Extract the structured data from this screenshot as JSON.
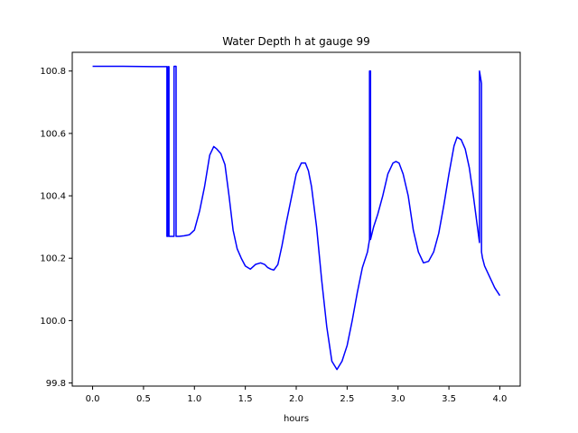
{
  "chart_data": {
    "type": "line",
    "title": "Water Depth h at gauge 99",
    "xlabel": "hours",
    "ylabel": "",
    "xlim": [
      -0.2,
      4.2
    ],
    "ylim": [
      99.79,
      100.86
    ],
    "xticks": [
      0.0,
      0.5,
      1.0,
      1.5,
      2.0,
      2.5,
      3.0,
      3.5,
      4.0
    ],
    "xtick_labels": [
      "0.0",
      "0.5",
      "1.0",
      "1.5",
      "2.0",
      "2.5",
      "3.0",
      "3.5",
      "4.0"
    ],
    "yticks": [
      99.8,
      100.0,
      100.2,
      100.4,
      100.6,
      100.8
    ],
    "ytick_labels": [
      "99.8",
      "100.0",
      "100.2",
      "100.4",
      "100.6",
      "100.8"
    ],
    "grid": false,
    "series": [
      {
        "color": "#0000ff",
        "x": [
          0.0,
          0.3,
          0.6,
          0.73,
          0.73,
          0.74,
          0.74,
          0.75,
          0.75,
          0.76,
          0.76,
          0.8,
          0.8,
          0.82,
          0.82,
          0.83,
          0.85,
          0.9,
          0.95,
          1.0,
          1.05,
          1.1,
          1.15,
          1.19,
          1.22,
          1.26,
          1.3,
          1.34,
          1.38,
          1.42,
          1.46,
          1.5,
          1.55,
          1.6,
          1.65,
          1.69,
          1.72,
          1.75,
          1.78,
          1.82,
          1.86,
          1.9,
          1.95,
          2.0,
          2.05,
          2.09,
          2.12,
          2.15,
          2.2,
          2.25,
          2.3,
          2.35,
          2.4,
          2.45,
          2.5,
          2.55,
          2.6,
          2.65,
          2.7,
          2.72,
          2.72,
          2.73,
          2.73,
          2.76,
          2.8,
          2.85,
          2.9,
          2.95,
          2.98,
          3.01,
          3.05,
          3.1,
          3.15,
          3.2,
          3.25,
          3.3,
          3.35,
          3.4,
          3.45,
          3.5,
          3.55,
          3.58,
          3.62,
          3.66,
          3.7,
          3.74,
          3.78,
          3.8,
          3.8,
          3.82,
          3.82,
          3.83,
          3.85,
          3.9,
          3.95,
          4.0
        ],
        "y": [
          100.815,
          100.815,
          100.814,
          100.814,
          100.27,
          100.27,
          100.814,
          100.814,
          100.27,
          100.27,
          100.27,
          100.27,
          100.815,
          100.815,
          100.27,
          100.27,
          100.27,
          100.272,
          100.275,
          100.29,
          100.35,
          100.43,
          100.53,
          100.558,
          100.55,
          100.535,
          100.5,
          100.4,
          100.29,
          100.23,
          100.2,
          100.175,
          100.165,
          100.18,
          100.185,
          100.18,
          100.17,
          100.165,
          100.162,
          100.18,
          100.24,
          100.31,
          100.39,
          100.47,
          100.505,
          100.505,
          100.48,
          100.43,
          100.3,
          100.13,
          99.98,
          99.87,
          99.843,
          99.87,
          99.92,
          100.0,
          100.09,
          100.17,
          100.22,
          100.26,
          100.8,
          100.8,
          100.26,
          100.3,
          100.34,
          100.4,
          100.47,
          100.505,
          100.51,
          100.505,
          100.47,
          100.4,
          100.29,
          100.22,
          100.185,
          100.19,
          100.22,
          100.28,
          100.37,
          100.47,
          100.56,
          100.588,
          100.58,
          100.55,
          100.49,
          100.4,
          100.3,
          100.25,
          100.8,
          100.76,
          100.22,
          100.2,
          100.175,
          100.14,
          100.105,
          100.08
        ]
      }
    ]
  }
}
